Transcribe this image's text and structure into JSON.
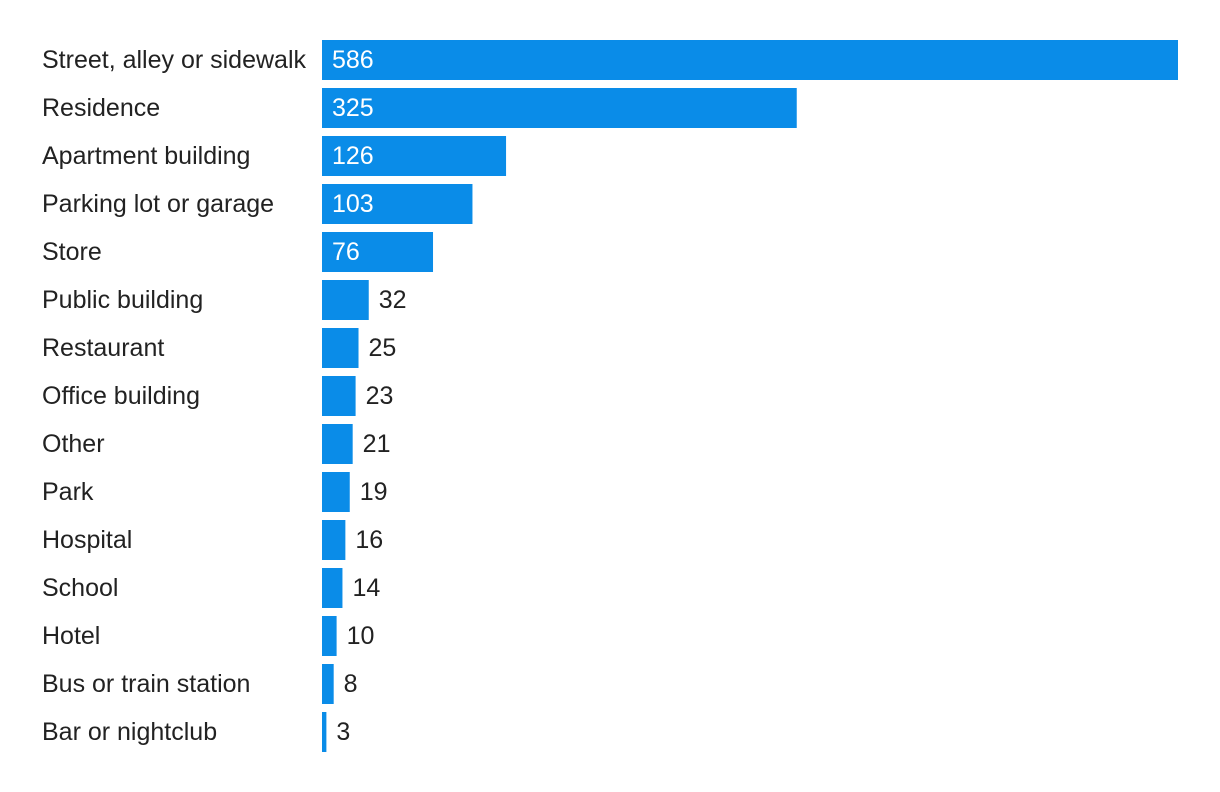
{
  "chart_data": {
    "type": "bar",
    "orientation": "horizontal",
    "title": "",
    "xlabel": "",
    "ylabel": "",
    "grid": false,
    "legend": "none",
    "bar_color": "#0a8ce8",
    "inside_label_color": "#ffffff",
    "outside_label_color": "#222222",
    "xlim": [
      0,
      586
    ],
    "categories": [
      "Street, alley or sidewalk",
      "Residence",
      "Apartment building",
      "Parking lot or garage",
      "Store",
      "Public building",
      "Restaurant",
      "Office building",
      "Other",
      "Park",
      "Hospital",
      "School",
      "Hotel",
      "Bus or train station",
      "Bar or nightclub"
    ],
    "values": [
      586,
      325,
      126,
      103,
      76,
      32,
      25,
      23,
      21,
      19,
      16,
      14,
      10,
      8,
      3
    ]
  }
}
